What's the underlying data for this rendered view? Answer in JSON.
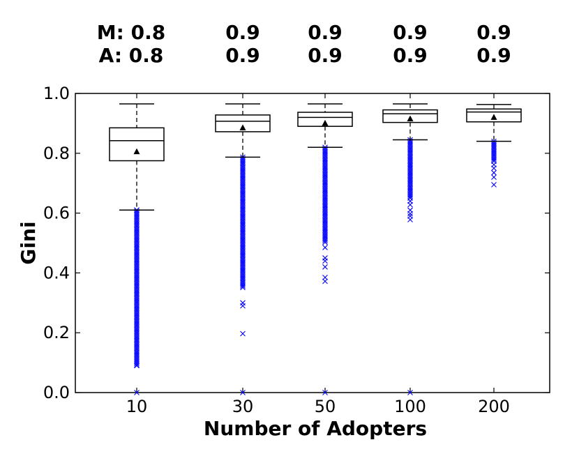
{
  "chart_data": {
    "type": "box",
    "title": "",
    "xlabel": "Number of Adopters",
    "ylabel": "Gini",
    "ylim": [
      0.0,
      1.0
    ],
    "yticks": [
      "0.0",
      "0.2",
      "0.4",
      "0.6",
      "0.8",
      "1.0"
    ],
    "categories": [
      "10",
      "30",
      "50",
      "100",
      "200"
    ],
    "annotation_rows": [
      {
        "label": "M",
        "values": [
          "M: 0.8",
          "0.9",
          "0.9",
          "0.9",
          "0.9"
        ]
      },
      {
        "label": "A",
        "values": [
          "A: 0.8",
          "0.9",
          "0.9",
          "0.9",
          "0.9"
        ]
      }
    ],
    "boxes": [
      {
        "category": "10",
        "whisker_low": 0.61,
        "q1": 0.775,
        "median": 0.842,
        "q3": 0.885,
        "whisker_high": 0.965,
        "mean": 0.805,
        "outliers": [
          0.0,
          0.09,
          0.61
        ],
        "outlier_dense_range": [
          0.09,
          0.61
        ]
      },
      {
        "category": "30",
        "whisker_low": 0.787,
        "q1": 0.872,
        "median": 0.907,
        "q3": 0.928,
        "whisker_high": 0.965,
        "mean": 0.885,
        "outliers": [
          0.0,
          0.197,
          0.29,
          0.3
        ],
        "outlier_dense_range": [
          0.35,
          0.787
        ]
      },
      {
        "category": "50",
        "whisker_low": 0.82,
        "q1": 0.89,
        "median": 0.92,
        "q3": 0.937,
        "whisker_high": 0.965,
        "mean": 0.9,
        "outliers": [
          0.0,
          0.372,
          0.385,
          0.42,
          0.44,
          0.45,
          0.485
        ],
        "outlier_dense_range": [
          0.5,
          0.82
        ]
      },
      {
        "category": "100",
        "whisker_low": 0.845,
        "q1": 0.903,
        "median": 0.932,
        "q3": 0.945,
        "whisker_high": 0.965,
        "mean": 0.915,
        "outliers": [
          0.0,
          0.578,
          0.59,
          0.598,
          0.61,
          0.628,
          0.64
        ],
        "outlier_dense_range": [
          0.65,
          0.845
        ]
      },
      {
        "category": "200",
        "whisker_low": 0.84,
        "q1": 0.905,
        "median": 0.938,
        "q3": 0.948,
        "whisker_high": 0.963,
        "mean": 0.92,
        "outliers": [
          0.695,
          0.72,
          0.735,
          0.75,
          0.762
        ],
        "outlier_dense_range": [
          0.77,
          0.84
        ]
      }
    ],
    "colors": {
      "outlier": "#0000ff",
      "box": "#000000",
      "median": "#000000",
      "mean_marker": "#000000"
    }
  }
}
